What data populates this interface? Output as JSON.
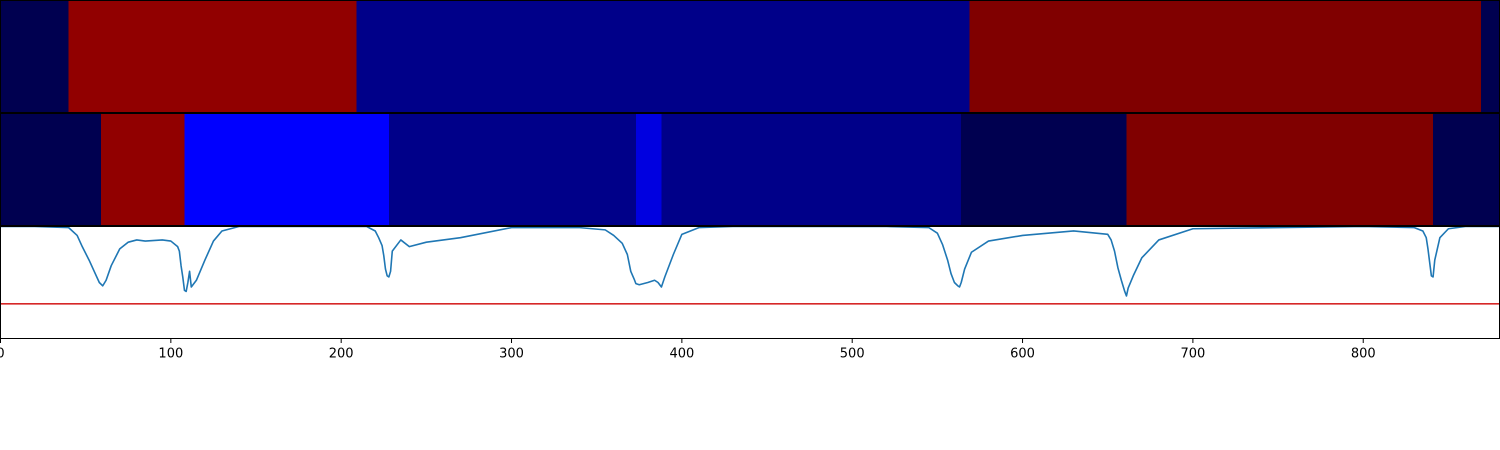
{
  "chart_data": {
    "type": "heatmap",
    "xlim": [
      0,
      880
    ],
    "x_ticks": [
      {
        "value": 0,
        "label": "0"
      },
      {
        "value": 100,
        "label": "100"
      },
      {
        "value": 200,
        "label": "200"
      },
      {
        "value": 300,
        "label": "300"
      },
      {
        "value": 400,
        "label": "400"
      },
      {
        "value": 500,
        "label": "500"
      },
      {
        "value": 600,
        "label": "600"
      },
      {
        "value": 700,
        "label": "700"
      },
      {
        "value": 800,
        "label": "800"
      }
    ],
    "segment_rows": [
      {
        "segments": [
          {
            "start": 0,
            "end": 40,
            "color": "#000050"
          },
          {
            "start": 40,
            "end": 209,
            "color": "#910000"
          },
          {
            "start": 209,
            "end": 569,
            "color": "#000089"
          },
          {
            "start": 569,
            "end": 869,
            "color": "#800000"
          },
          {
            "start": 869,
            "end": 880,
            "color": "#000050"
          }
        ]
      },
      {
        "segments": [
          {
            "start": 0,
            "end": 59,
            "color": "#000050"
          },
          {
            "start": 59,
            "end": 108,
            "color": "#910000"
          },
          {
            "start": 108,
            "end": 228,
            "color": "#0000ff"
          },
          {
            "start": 228,
            "end": 373,
            "color": "#000089"
          },
          {
            "start": 373,
            "end": 388,
            "color": "#0000e0"
          },
          {
            "start": 388,
            "end": 564,
            "color": "#000089"
          },
          {
            "start": 564,
            "end": 661,
            "color": "#000050"
          },
          {
            "start": 661,
            "end": 841,
            "color": "#800000"
          },
          {
            "start": 841,
            "end": 880,
            "color": "#000050"
          }
        ]
      }
    ],
    "line_panel": {
      "ylim": [
        0,
        1
      ],
      "threshold": 0.31,
      "line_color": "#1f77b4",
      "threshold_color": "#d62728",
      "series": {
        "x": [
          0,
          20,
          40,
          45,
          48,
          52,
          55,
          58,
          60,
          62,
          65,
          70,
          75,
          80,
          85,
          95,
          100,
          104,
          105,
          106,
          107,
          108,
          109,
          110,
          111,
          112,
          115,
          120,
          125,
          130,
          140,
          150,
          200,
          215,
          220,
          222,
          224,
          225,
          226,
          227,
          228,
          229,
          230,
          235,
          240,
          250,
          270,
          300,
          340,
          355,
          360,
          365,
          368,
          370,
          372,
          373,
          375,
          380,
          384,
          386,
          387,
          388,
          390,
          395,
          400,
          410,
          430,
          520,
          545,
          550,
          553,
          556,
          558,
          560,
          562,
          563,
          564,
          566,
          570,
          580,
          600,
          630,
          650,
          652,
          654,
          656,
          658,
          660,
          661,
          662,
          665,
          670,
          680,
          700,
          800,
          830,
          835,
          837,
          838,
          840,
          841,
          842,
          845,
          850,
          860,
          880
        ],
        "y": [
          1.0,
          1.0,
          0.99,
          0.92,
          0.82,
          0.7,
          0.6,
          0.5,
          0.47,
          0.52,
          0.65,
          0.8,
          0.86,
          0.88,
          0.87,
          0.88,
          0.87,
          0.82,
          0.78,
          0.65,
          0.55,
          0.43,
          0.42,
          0.5,
          0.6,
          0.46,
          0.52,
          0.7,
          0.87,
          0.96,
          1.0,
          1.0,
          1.0,
          1.0,
          0.96,
          0.9,
          0.83,
          0.74,
          0.62,
          0.56,
          0.55,
          0.6,
          0.78,
          0.88,
          0.82,
          0.86,
          0.9,
          0.99,
          0.99,
          0.97,
          0.92,
          0.85,
          0.75,
          0.6,
          0.53,
          0.49,
          0.48,
          0.5,
          0.52,
          0.5,
          0.48,
          0.46,
          0.55,
          0.75,
          0.93,
          0.99,
          1.0,
          1.0,
          0.99,
          0.94,
          0.84,
          0.7,
          0.58,
          0.5,
          0.47,
          0.46,
          0.5,
          0.62,
          0.77,
          0.87,
          0.92,
          0.96,
          0.93,
          0.88,
          0.78,
          0.63,
          0.52,
          0.42,
          0.38,
          0.45,
          0.56,
          0.72,
          0.88,
          0.98,
          1.0,
          0.99,
          0.96,
          0.9,
          0.8,
          0.56,
          0.55,
          0.7,
          0.9,
          0.98,
          1.0,
          1.0
        ]
      }
    }
  }
}
